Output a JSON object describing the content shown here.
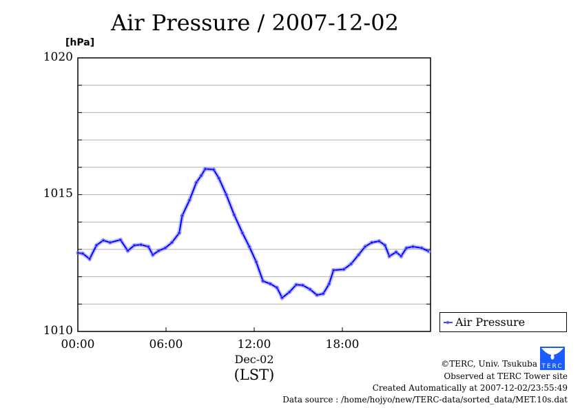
{
  "chart_data": {
    "type": "line",
    "title": "Air Pressure / 2007-12-02",
    "ylabel": "[hPa]",
    "xlabel": "(LST)",
    "date_label": "Dec-02",
    "ylim": [
      1010,
      1020
    ],
    "xlim": [
      0,
      24
    ],
    "yticks": [
      {
        "value": 1010,
        "label": "1010"
      },
      {
        "value": 1015,
        "label": "1015"
      },
      {
        "value": 1020,
        "label": "1020"
      }
    ],
    "xticks": [
      {
        "value": 0,
        "label": "00:00"
      },
      {
        "value": 6,
        "label": "06:00"
      },
      {
        "value": 12,
        "label": "12:00"
      },
      {
        "value": 18,
        "label": "18:00"
      }
    ],
    "grid": true,
    "legend_position": "right-bottom",
    "series": [
      {
        "name": "Air Pressure",
        "color": "#0000ff",
        "x": [
          0,
          0.33,
          0.8,
          1.27,
          1.73,
          2.2,
          2.9,
          3.4,
          3.85,
          4.3,
          4.8,
          5.1,
          5.5,
          5.95,
          6.4,
          6.9,
          7.1,
          7.6,
          8.06,
          8.4,
          8.67,
          9.24,
          9.6,
          10.1,
          10.64,
          11.2,
          11.67,
          12.14,
          12.6,
          13.1,
          13.55,
          13.9,
          14.4,
          14.86,
          15.3,
          15.8,
          16.27,
          16.7,
          17.1,
          17.4,
          18.1,
          18.6,
          19.1,
          19.55,
          20.0,
          20.5,
          20.9,
          21.2,
          21.66,
          22.0,
          22.36,
          22.8,
          23.4,
          23.9
        ],
        "y": [
          1012.87,
          1012.85,
          1012.65,
          1013.15,
          1013.33,
          1013.25,
          1013.35,
          1012.95,
          1013.15,
          1013.17,
          1013.1,
          1012.8,
          1012.95,
          1013.05,
          1013.25,
          1013.6,
          1014.23,
          1014.8,
          1015.44,
          1015.7,
          1015.94,
          1015.92,
          1015.6,
          1015.0,
          1014.26,
          1013.6,
          1013.1,
          1012.54,
          1011.84,
          1011.74,
          1011.6,
          1011.23,
          1011.44,
          1011.71,
          1011.69,
          1011.54,
          1011.33,
          1011.38,
          1011.74,
          1012.24,
          1012.27,
          1012.47,
          1012.8,
          1013.1,
          1013.25,
          1013.3,
          1013.15,
          1012.75,
          1012.9,
          1012.75,
          1013.05,
          1013.1,
          1013.05,
          1012.92
        ]
      }
    ]
  },
  "footer": {
    "copyright": "©TERC, Univ. Tsukuba",
    "observed": "Observed at TERC Tower site",
    "created": "Created Automatically at 2007-12-02/23:55:49",
    "source": "Data source : /home/hojyo/new/TERC-data/sorted_data/MET.10s.dat",
    "logo_text": "TERC"
  }
}
